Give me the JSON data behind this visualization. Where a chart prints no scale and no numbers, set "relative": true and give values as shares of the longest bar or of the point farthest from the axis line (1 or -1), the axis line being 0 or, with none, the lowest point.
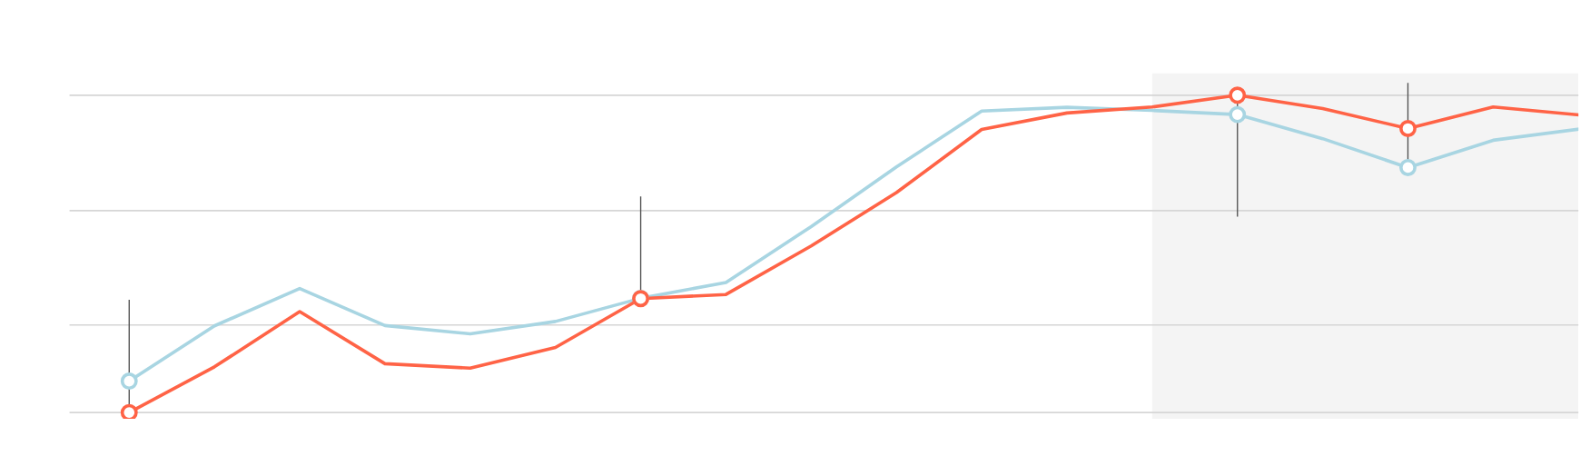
{
  "chart_data": {
    "type": "line",
    "relative": true,
    "line_style": "solid",
    "categories": [
      null,
      null,
      null,
      null,
      null,
      null,
      null,
      null,
      null,
      null,
      null,
      null,
      null,
      null,
      null,
      null,
      null,
      null
    ],
    "series": [
      {
        "color": "#a8d5e2",
        "values": [
          0.099,
          0.273,
          0.391,
          0.274,
          0.248,
          0.287,
          0.36,
          0.41,
          0.586,
          0.774,
          0.95,
          0.962,
          0.952,
          0.939,
          0.863,
          0.772,
          0.858,
          0.893
        ]
      },
      {
        "color": "#ff6346",
        "values": [
          0.0,
          0.144,
          0.318,
          0.154,
          0.14,
          0.205,
          0.359,
          0.372,
          0.525,
          0.693,
          0.892,
          0.944,
          0.963,
          1.0,
          0.958,
          0.895,
          0.963,
          0.938
        ]
      }
    ],
    "ref_lines": [
      {
        "axis": "y",
        "value": 0.0,
        "color": "#d6d6d6"
      },
      {
        "axis": "y",
        "value": 0.276,
        "color": "#d6d6d6"
      },
      {
        "axis": "y",
        "value": 0.636,
        "color": "#d6d6d6"
      },
      {
        "axis": "y",
        "value": 1.0,
        "color": "#d6d6d6"
      }
    ]
  }
}
